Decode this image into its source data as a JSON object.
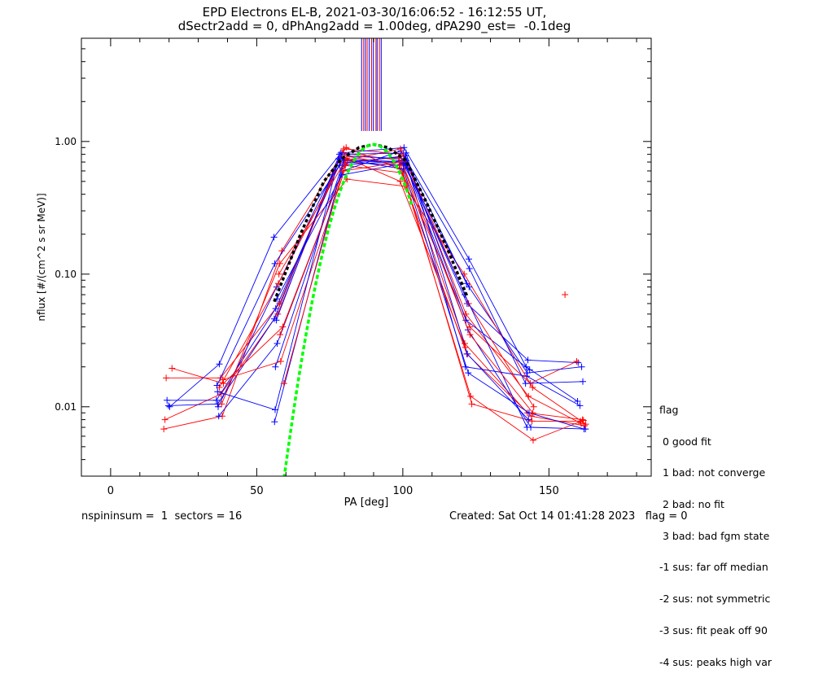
{
  "title": {
    "line1": "EPD Electrons EL-B, 2021-03-30/16:06:52 - 16:12:55 UT,",
    "line2": "dSectr2add = 0, dPhAng2add = 1.00deg, dPA290_est=  -0.1deg"
  },
  "legend": {
    "title": "flag",
    "items": [
      " 0 good fit",
      " 1 bad: not converge",
      " 2 bad: no fit",
      " 3 bad: bad fgm state",
      "-1 sus: far off median",
      "-2 sus: not symmetric",
      "-3 sus: fit peak off 90",
      "-4 sus: peaks high var"
    ]
  },
  "footer": {
    "left": "nspininsum =  1  sectors = 16",
    "right": "Created: Sat Oct 14 01:41:28 2023   flag = 0"
  },
  "colors": {
    "red": "#ff0000",
    "blue": "#0000ff",
    "fit": "#00ff00",
    "median": "#000000"
  },
  "chart_data": {
    "type": "line",
    "xlabel": "PA [deg]",
    "ylabel": "nflux [#/(cm^2 s sr MeV)]",
    "xlim": [
      -10,
      185
    ],
    "ylim": [
      0.003,
      6.0
    ],
    "yscale": "log",
    "xticks": [
      0,
      50,
      100,
      150
    ],
    "yticks": [
      {
        "value": 0.01,
        "label": "0.01"
      },
      {
        "value": 0.1,
        "label": "0.10"
      },
      {
        "value": 1.0,
        "label": "1.00"
      }
    ],
    "grid": false,
    "legend_position": "right",
    "sector_pa_lines": {
      "red": [
        86.6,
        87.8,
        89.3,
        90.8,
        92.0
      ],
      "blue": [
        85.9,
        87.2,
        88.5,
        89.9,
        91.2,
        92.6
      ],
      "ymin": 1.2,
      "ymax": 6.0
    },
    "series": [
      {
        "color": "red",
        "points": [
          [
            18.6,
            0.008
          ],
          [
            37.8,
            0.0125
          ],
          [
            57.2,
            0.05
          ],
          [
            79.2,
            0.82
          ],
          [
            99.5,
            0.72
          ],
          [
            121.2,
            0.03
          ],
          [
            142.6,
            0.009
          ],
          [
            161.5,
            0.008
          ]
        ]
      },
      {
        "color": "blue",
        "points": [
          [
            19.8,
            0.0102
          ],
          [
            36.6,
            0.0105
          ],
          [
            56.0,
            0.046
          ],
          [
            78.2,
            0.74
          ],
          [
            100.7,
            0.7
          ],
          [
            122.3,
            0.038
          ],
          [
            143.8,
            0.007
          ],
          [
            162.5,
            0.0068
          ]
        ]
      },
      {
        "color": "red",
        "points": [
          [
            19.0,
            0.0165
          ],
          [
            37.6,
            0.0165
          ],
          [
            57.8,
            0.06
          ],
          [
            79.8,
            0.88
          ],
          [
            100.2,
            0.8
          ],
          [
            121.6,
            0.05
          ],
          [
            143.0,
            0.012
          ],
          [
            161.0,
            0.0075
          ]
        ]
      },
      {
        "color": "blue",
        "points": [
          [
            19.3,
            0.0112
          ],
          [
            36.2,
            0.0112
          ],
          [
            56.5,
            0.055
          ],
          [
            78.6,
            0.7
          ],
          [
            101.0,
            0.66
          ],
          [
            122.0,
            0.06
          ],
          [
            142.8,
            0.0225
          ],
          [
            160.0,
            0.0215
          ]
        ]
      },
      {
        "color": "red",
        "points": [
          [
            18.2,
            0.0068
          ],
          [
            38.2,
            0.0085
          ],
          [
            58.6,
            0.15
          ],
          [
            80.6,
            0.9
          ],
          [
            99.0,
            0.62
          ],
          [
            121.9,
            0.025
          ],
          [
            144.0,
            0.0085
          ],
          [
            162.2,
            0.0072
          ]
        ]
      },
      {
        "color": "blue",
        "points": [
          [
            20.2,
            0.01
          ],
          [
            37.2,
            0.021
          ],
          [
            55.9,
            0.19
          ],
          [
            78.8,
            0.82
          ],
          [
            100.4,
            0.9
          ],
          [
            122.6,
            0.13
          ],
          [
            142.2,
            0.02
          ],
          [
            159.8,
            0.011
          ]
        ]
      },
      {
        "color": "red",
        "points": [
          [
            21.0,
            0.0195
          ],
          [
            38.6,
            0.015
          ],
          [
            58.9,
            0.04
          ],
          [
            80.2,
            0.66
          ],
          [
            99.8,
            0.58
          ],
          [
            123.2,
            0.012
          ],
          [
            144.6,
            0.0056
          ],
          [
            161.8,
            0.0079
          ]
        ]
      },
      {
        "color": "blue",
        "points": [
          [
            36.8,
            0.01
          ],
          [
            56.8,
            0.08
          ],
          [
            79.0,
            0.78
          ],
          [
            100.8,
            0.74
          ],
          [
            121.4,
            0.02
          ],
          [
            142.4,
            0.017
          ],
          [
            160.6,
            0.0102
          ]
        ]
      },
      {
        "color": "red",
        "points": [
          [
            37.2,
            0.014
          ],
          [
            57.4,
            0.085
          ],
          [
            80.0,
            0.78
          ],
          [
            98.8,
            0.66
          ],
          [
            122.9,
            0.04
          ],
          [
            143.6,
            0.015
          ],
          [
            159.5,
            0.022
          ]
        ]
      },
      {
        "color": "blue",
        "points": [
          [
            36.4,
            0.0145
          ],
          [
            56.2,
            0.12
          ],
          [
            78.4,
            0.66
          ],
          [
            101.2,
            0.72
          ],
          [
            121.8,
            0.085
          ],
          [
            142.6,
            0.018
          ],
          [
            161.2,
            0.02
          ]
        ]
      },
      {
        "color": "red",
        "points": [
          [
            38.0,
            0.0105
          ],
          [
            57.9,
            0.12
          ],
          [
            80.9,
            0.52
          ],
          [
            100.6,
            0.46
          ],
          [
            121.0,
            0.1
          ],
          [
            144.4,
            0.014
          ],
          [
            162.6,
            0.0074
          ]
        ]
      },
      {
        "color": "blue",
        "points": [
          [
            37.0,
            0.0085
          ],
          [
            57.0,
            0.03
          ],
          [
            79.4,
            0.6
          ],
          [
            99.4,
            0.85
          ],
          [
            122.8,
            0.11
          ],
          [
            142.0,
            0.015
          ],
          [
            161.6,
            0.0155
          ]
        ]
      },
      {
        "color": "red",
        "points": [
          [
            38.4,
            0.016
          ],
          [
            58.2,
            0.022
          ],
          [
            81.0,
            0.7
          ],
          [
            98.6,
            0.76
          ],
          [
            123.6,
            0.0105
          ],
          [
            144.2,
            0.0078
          ],
          [
            160.8,
            0.0078
          ]
        ]
      },
      {
        "color": "blue",
        "points": [
          [
            36.6,
            0.013
          ],
          [
            56.3,
            0.0095
          ],
          [
            78.0,
            0.74
          ],
          [
            100.2,
            0.62
          ],
          [
            122.4,
            0.018
          ],
          [
            143.2,
            0.009
          ],
          [
            162.0,
            0.0068
          ]
        ]
      },
      {
        "color": "blue",
        "points": [
          [
            56.1,
            0.0077
          ],
          [
            79.6,
            0.68
          ],
          [
            100.9,
            0.78
          ],
          [
            121.6,
            0.045
          ],
          [
            143.4,
            0.019
          ]
        ]
      },
      {
        "color": "red",
        "points": [
          [
            59.3,
            0.015
          ],
          [
            80.4,
            0.72
          ],
          [
            99.2,
            0.88
          ],
          [
            122.5,
            0.06
          ],
          [
            144.8,
            0.01
          ]
        ]
      },
      {
        "color": "blue",
        "points": [
          [
            56.4,
            0.02
          ],
          [
            79.8,
            0.72
          ],
          [
            100.5,
            0.69
          ],
          [
            121.2,
            0.07
          ],
          [
            142.5,
            0.007
          ]
        ]
      },
      {
        "color": "red",
        "points": [
          [
            58.0,
            0.035
          ],
          [
            79.5,
            0.6
          ],
          [
            99.7,
            0.7
          ],
          [
            123.0,
            0.035
          ],
          [
            144.5,
            0.009
          ]
        ]
      },
      {
        "color": "blue",
        "points": [
          [
            56.7,
            0.045
          ],
          [
            78.3,
            0.8
          ],
          [
            101.1,
            0.82
          ],
          [
            122.1,
            0.025
          ],
          [
            143.0,
            0.008
          ]
        ]
      },
      {
        "color": "red",
        "points": [
          [
            57.6,
            0.1
          ],
          [
            80.8,
            0.75
          ],
          [
            99.1,
            0.5
          ],
          [
            121.4,
            0.028
          ]
        ]
      },
      {
        "color": "blue",
        "points": [
          [
            56.9,
            0.065
          ],
          [
            79.1,
            0.56
          ],
          [
            100.1,
            0.68
          ],
          [
            122.7,
            0.08
          ]
        ]
      },
      {
        "color": "red",
        "points": [
          [
            155.5,
            0.07
          ]
        ]
      }
    ],
    "fit": {
      "color": "green",
      "x_range": [
        56,
        103
      ],
      "peak_x": 90,
      "peak_y": 0.95,
      "sigma": 9
    },
    "median": {
      "color": "black",
      "points": [
        [
          56,
          0.062
        ],
        [
          65,
          0.2
        ],
        [
          73,
          0.5
        ],
        [
          79,
          0.74
        ],
        [
          85,
          0.9
        ],
        [
          90,
          0.95
        ],
        [
          95,
          0.9
        ],
        [
          101,
          0.72
        ],
        [
          108,
          0.35
        ],
        [
          115,
          0.16
        ],
        [
          122,
          0.068
        ]
      ]
    }
  }
}
